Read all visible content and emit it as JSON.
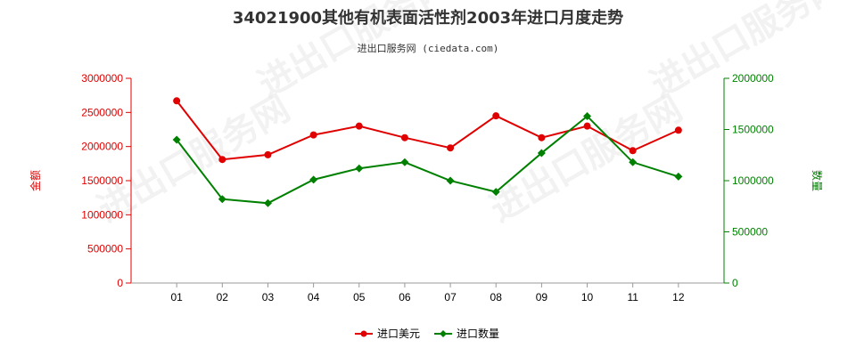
{
  "chart_data": {
    "type": "line",
    "title": "34021900其他有机表面活性剂2003年进口月度走势",
    "subtitle": "进出口服务网 (ciedata.com)",
    "ylabel_left": "金额",
    "ylabel_right": "数量",
    "categories": [
      "01",
      "02",
      "03",
      "04",
      "05",
      "06",
      "07",
      "08",
      "09",
      "10",
      "11",
      "12"
    ],
    "ylim_left": [
      0,
      3000000
    ],
    "yticks_left": [
      "0",
      "500000",
      "1000000",
      "1500000",
      "2000000",
      "2500000",
      "3000000"
    ],
    "ylim_right": [
      0,
      2000000
    ],
    "yticks_right": [
      "0",
      "500000",
      "1000000",
      "1500000",
      "2000000"
    ],
    "grid": false,
    "legend_position": "bottom",
    "series": [
      {
        "name": "进口美元",
        "axis": "left",
        "color": "#e00000",
        "marker": "circle",
        "values": [
          2670000,
          1810000,
          1880000,
          2170000,
          2300000,
          2130000,
          1980000,
          2450000,
          2130000,
          2300000,
          1940000,
          2240000
        ]
      },
      {
        "name": "进口数量",
        "axis": "right",
        "color": "#008000",
        "marker": "diamond",
        "values": [
          1400000,
          820000,
          780000,
          1010000,
          1120000,
          1180000,
          1000000,
          890000,
          1270000,
          1630000,
          1180000,
          1040000
        ]
      }
    ]
  },
  "watermark_text": "进出口服务网"
}
